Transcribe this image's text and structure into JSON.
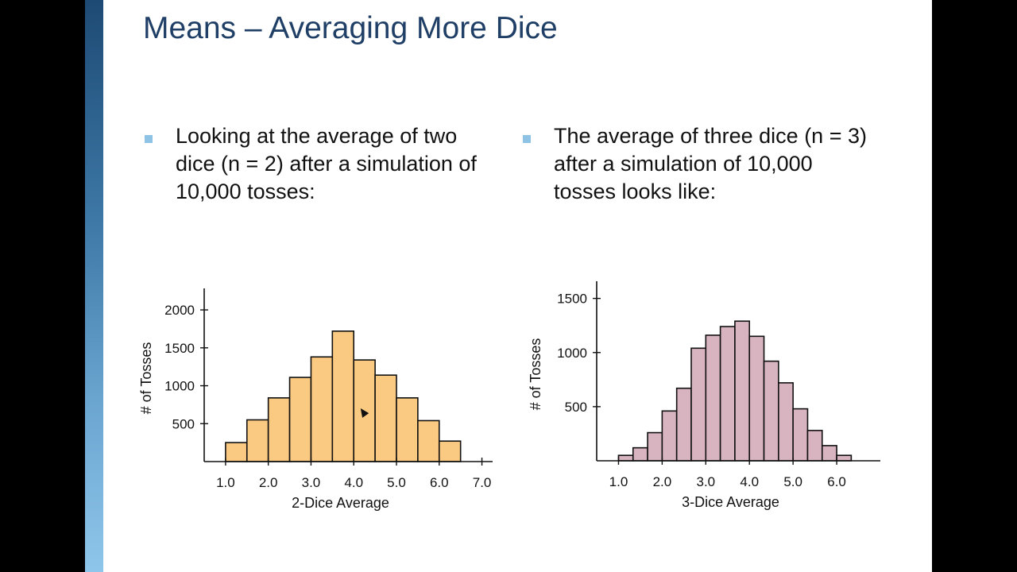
{
  "slide": {
    "title": "Means – Averaging More Dice",
    "left_bullet_lines": [
      "Looking at the average of two",
      "dice (n = 2) after a simulation of",
      "10,000 tosses:"
    ],
    "right_bullet_lines": [
      "The average of three dice (n = 3)",
      "after a simulation of 10,000",
      "tosses looks like:"
    ]
  },
  "colors": {
    "title": "#1f3f66",
    "bullet": "#8fc3e6",
    "chart1_fill": "#fbca82",
    "chart2_fill": "#d7b4c0"
  },
  "chart_data": [
    {
      "type": "bar",
      "xlabel": "2-Dice Average",
      "ylabel": "# of Tosses",
      "x_ticks": [
        "1.0",
        "2.0",
        "3.0",
        "4.0",
        "5.0",
        "6.0",
        "7.0"
      ],
      "y_ticks": [
        "500",
        "1000",
        "1500",
        "2000"
      ],
      "bin_edges": [
        1.0,
        1.5,
        2.0,
        2.5,
        3.0,
        3.5,
        4.0,
        4.5,
        5.0,
        5.5,
        6.0,
        6.5
      ],
      "values": [
        250,
        550,
        840,
        1110,
        1380,
        1720,
        1340,
        1140,
        840,
        540,
        270
      ],
      "xlim": [
        0.5,
        7.25
      ],
      "ylim": [
        0,
        2200
      ]
    },
    {
      "type": "bar",
      "xlabel": "3-Dice Average",
      "ylabel": "# of Tosses",
      "x_ticks": [
        "1.0",
        "2.0",
        "3.0",
        "4.0",
        "5.0",
        "6.0"
      ],
      "y_ticks": [
        "500",
        "1000",
        "1500"
      ],
      "bin_edges": [
        1.0,
        1.3333,
        1.6667,
        2.0,
        2.3333,
        2.6667,
        3.0,
        3.3333,
        3.6667,
        4.0,
        4.3333,
        4.6667,
        5.0,
        5.3333,
        5.6667,
        6.0,
        6.3333
      ],
      "values": [
        50,
        120,
        260,
        460,
        670,
        1040,
        1160,
        1240,
        1290,
        1150,
        920,
        720,
        480,
        280,
        140,
        50
      ],
      "xlim": [
        0.5,
        7.0
      ],
      "ylim": [
        0,
        1600
      ]
    }
  ]
}
